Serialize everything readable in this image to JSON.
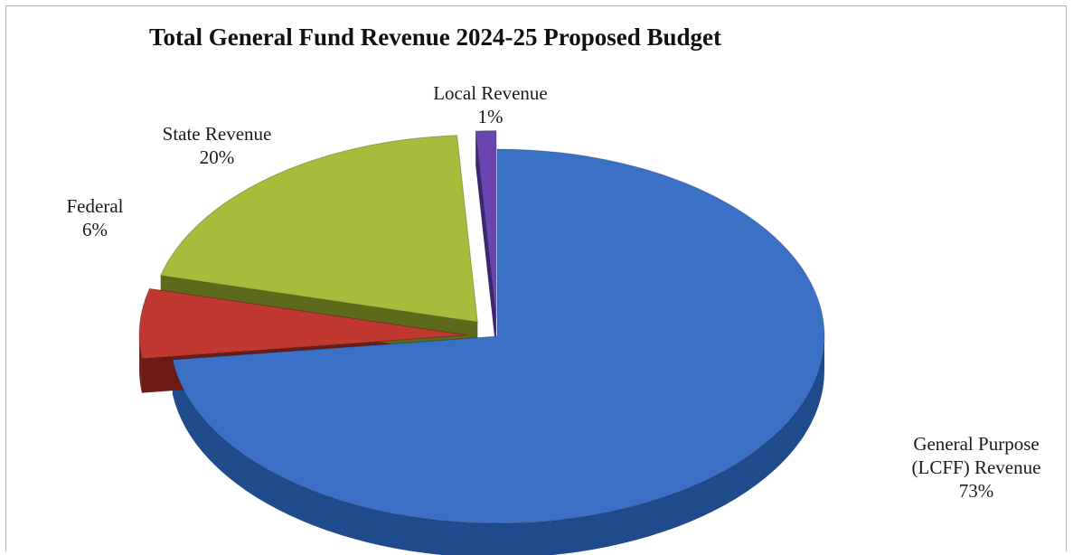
{
  "chart_data": {
    "type": "pie",
    "title": "Total General Fund Revenue 2024-25 Proposed Budget",
    "slices": [
      {
        "label_lines": [
          "General Purpose",
          "(LCFF) Revenue"
        ],
        "pct_label": "73%",
        "value": 73,
        "color": "#3a70c6",
        "dark": "#1f4a8c",
        "exploded": false
      },
      {
        "label_lines": [
          "Federal"
        ],
        "pct_label": "6%",
        "value": 6,
        "color": "#c0382f",
        "dark": "#6e1b16",
        "exploded": true
      },
      {
        "label_lines": [
          "State Revenue"
        ],
        "pct_label": "20%",
        "value": 20,
        "color": "#a9bb3a",
        "dark": "#5d6a1c",
        "exploded": true
      },
      {
        "label_lines": [
          "Local Revenue"
        ],
        "pct_label": "1%",
        "value": 1,
        "color": "#6a45b0",
        "dark": "#3c2670",
        "exploded": true
      }
    ],
    "legend": "none",
    "style": "3d-exploded"
  }
}
